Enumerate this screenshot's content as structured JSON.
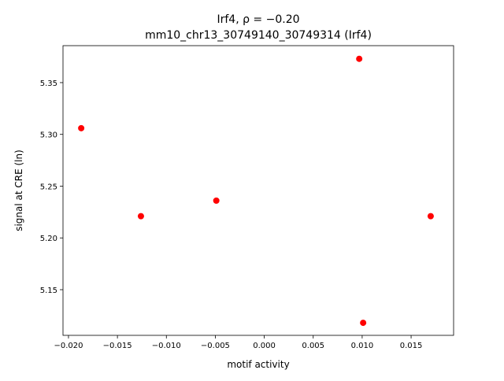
{
  "chart_data": {
    "type": "scatter",
    "title": "Irf4, ρ = −0.20",
    "subtitle": "mm10_chr13_30749140_30749314 (Irf4)",
    "x_label": "motif activity",
    "y_label": "signal at CRE (ln)",
    "color": "#ff0000",
    "x": [
      -0.0187,
      -0.0126,
      -0.0049,
      0.0097,
      0.0101,
      0.017
    ],
    "values": [
      5.306,
      5.221,
      5.236,
      5.373,
      5.118,
      5.221
    ],
    "xlim": [
      -0.02056,
      0.01934
    ],
    "ylim": [
      5.1059,
      5.3857
    ],
    "xticks": [
      {
        "value": -0.02,
        "label": "−0.020"
      },
      {
        "value": -0.015,
        "label": "−0.015"
      },
      {
        "value": -0.01,
        "label": "−0.010"
      },
      {
        "value": -0.005,
        "label": "−0.005"
      },
      {
        "value": 0,
        "label": "0.000"
      },
      0.005,
      {
        "value": 0.01,
        "label": "0.010"
      },
      0.015
    ],
    "yticks": [
      5.15,
      {
        "value": 5.2,
        "label": "5.20"
      },
      5.25,
      {
        "value": 5.3,
        "label": "5.30"
      },
      5.35
    ]
  }
}
